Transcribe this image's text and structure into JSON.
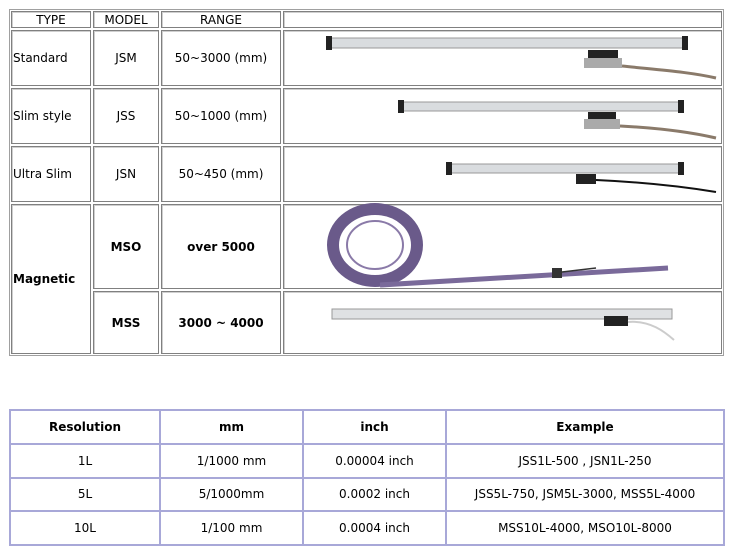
{
  "spec_table": {
    "header": [
      "TYPE",
      "MODEL",
      "RANGE"
    ],
    "rows": [
      {
        "type": "Standard",
        "model": "JSM",
        "range": "50~3000 (mm)"
      },
      {
        "type": "Slim style",
        "model": "JSS",
        "range": "50~1000 (mm)"
      },
      {
        "type": "Ultra Slim",
        "model": "JSN",
        "range": "50~450 (mm)"
      },
      {
        "type": "Magnetic",
        "model": "MSO",
        "range": "over 5000"
      },
      {
        "model": "MSS",
        "range": "3000 ~ 4000"
      }
    ]
  },
  "resolution_table": {
    "header": [
      "Resolution",
      "mm",
      "inch",
      "Example"
    ],
    "rows": [
      [
        "1L",
        "1/1000 mm",
        "0.00004 inch",
        "JSS1L-500 , JSN1L-250"
      ],
      [
        "5L",
        "5/1000mm",
        "0.0002 inch",
        "JSS5L-750, JSM5L-3000, MSS5L-4000"
      ],
      [
        "10L",
        "1/100 mm",
        "0.0004 inch",
        "MSS10L-4000, MSO10L-8000"
      ]
    ]
  }
}
